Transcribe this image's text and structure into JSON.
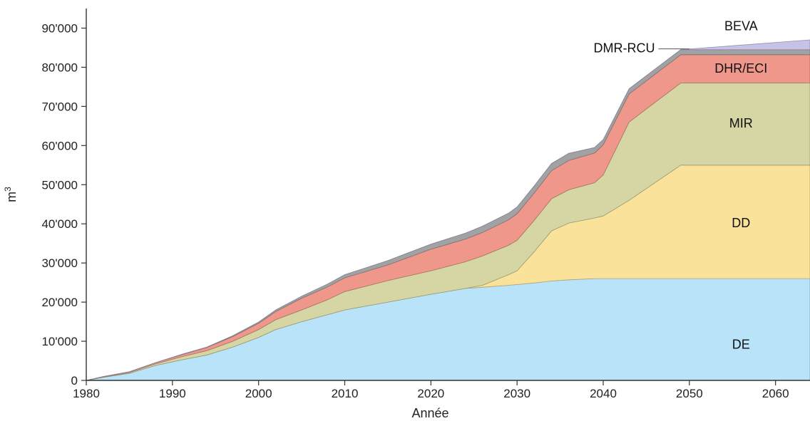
{
  "chart_data": {
    "type": "area",
    "stacked": true,
    "title": "",
    "xlabel": "Année",
    "ylabel": "m3",
    "ylabel_base": "m",
    "ylabel_sup": "3",
    "xlim": [
      1980,
      2064
    ],
    "ylim": [
      0,
      95000
    ],
    "x_ticks": [
      1980,
      1990,
      2000,
      2010,
      2020,
      2030,
      2040,
      2050,
      2060
    ],
    "x_tick_labels": [
      "1980",
      "1990",
      "2000",
      "2010",
      "2020",
      "2030",
      "2040",
      "2050",
      "2060"
    ],
    "y_ticks": [
      0,
      10000,
      20000,
      30000,
      40000,
      50000,
      60000,
      70000,
      80000,
      90000
    ],
    "y_tick_labels": [
      "0",
      "10'000",
      "20'000",
      "30'000",
      "40'000",
      "50'000",
      "60'000",
      "70'000",
      "80'000",
      "90'000"
    ],
    "grid": false,
    "legend": "inline labels",
    "x": [
      1980,
      1982,
      1985,
      1988,
      1991,
      1994,
      1997,
      2000,
      2002,
      2005,
      2008,
      2010,
      2015,
      2020,
      2024,
      2026,
      2029,
      2030,
      2032,
      2034,
      2036,
      2039,
      2040,
      2043,
      2049,
      2064
    ],
    "series": [
      {
        "name": "DE",
        "color": "#b9e3f8",
        "values": [
          0,
          800,
          1800,
          3800,
          5200,
          6500,
          8500,
          11000,
          13000,
          15000,
          16800,
          18000,
          20000,
          22000,
          23500,
          23800,
          24300,
          24500,
          24900,
          25400,
          25700,
          26000,
          26000,
          26000,
          26000,
          26000
        ]
      },
      {
        "name": "DD",
        "color": "#fbe29b",
        "values": [
          0,
          0,
          0,
          0,
          0,
          0,
          0,
          0,
          0,
          0,
          0,
          0,
          0,
          0,
          0,
          500,
          2700,
          3500,
          8000,
          12800,
          14500,
          15500,
          16000,
          20000,
          29000,
          29000
        ]
      },
      {
        "name": "MIR",
        "color": "#d5d6a4",
        "values": [
          0,
          100,
          200,
          400,
          800,
          1100,
          1500,
          2000,
          2500,
          3000,
          3800,
          4700,
          5500,
          6000,
          6800,
          7500,
          7500,
          7800,
          8000,
          8200,
          8500,
          9000,
          10500,
          20000,
          21000,
          21000
        ]
      },
      {
        "name": "DHR/ECI",
        "color": "#ee978a",
        "values": [
          0,
          100,
          200,
          300,
          500,
          800,
          1200,
          1600,
          2100,
          3000,
          3300,
          3500,
          4000,
          5500,
          5800,
          6000,
          6500,
          6800,
          7000,
          7200,
          7500,
          7600,
          7700,
          7200,
          7200,
          7200
        ]
      },
      {
        "name": "DMR-RCU",
        "color": "#a2a2a4",
        "values": [
          0,
          0,
          0,
          0,
          100,
          100,
          200,
          300,
          400,
          500,
          700,
          800,
          1100,
          1300,
          1500,
          1600,
          1700,
          1700,
          1800,
          1800,
          1800,
          1400,
          1300,
          1300,
          1300,
          1300
        ]
      },
      {
        "name": "BEVA",
        "color": "#c7c3e6",
        "values": [
          0,
          0,
          0,
          0,
          0,
          0,
          0,
          0,
          0,
          0,
          0,
          0,
          0,
          0,
          0,
          0,
          0,
          0,
          0,
          0,
          0,
          0,
          0,
          0,
          0,
          2500
        ]
      }
    ],
    "labels": [
      {
        "name": "DE",
        "text": "DE",
        "at": [
          2056,
          9000
        ]
      },
      {
        "name": "DD",
        "text": "DD",
        "at": [
          2056,
          40000
        ]
      },
      {
        "name": "MIR",
        "text": "MIR",
        "at": [
          2056,
          65500
        ]
      },
      {
        "name": "DHR/ECI",
        "text": "DHR/ECI",
        "at": [
          2056,
          79500
        ]
      },
      {
        "name": "DMR-RCU",
        "text": "DMR-RCU",
        "at": [
          2046,
          84700
        ],
        "leader_to": [
          2050,
          84700
        ],
        "anchor": "end"
      },
      {
        "name": "BEVA",
        "text": "BEVA",
        "at": [
          2056,
          90300
        ]
      }
    ]
  }
}
